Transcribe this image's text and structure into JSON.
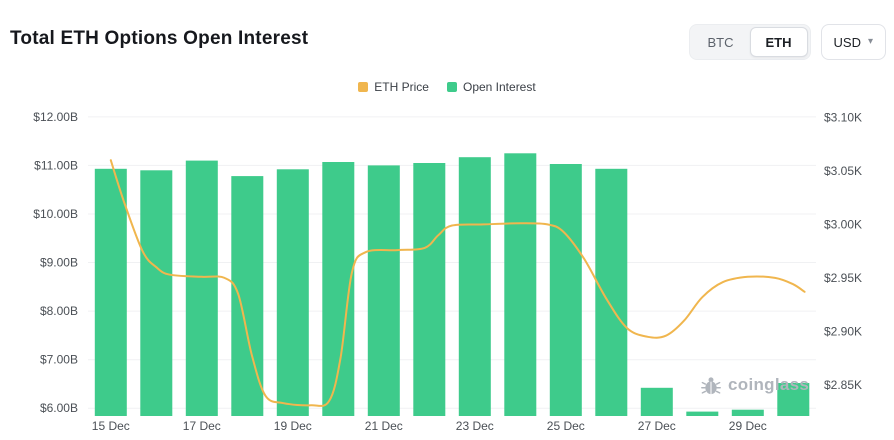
{
  "header": {
    "title": "Total ETH Options Open Interest",
    "coin_toggle": [
      "BTC",
      "ETH"
    ],
    "coin_selected": "ETH",
    "currency": "USD"
  },
  "legend": [
    {
      "label": "ETH Price",
      "color": "#f0b64e"
    },
    {
      "label": "Open Interest",
      "color": "#3ecb8b"
    }
  ],
  "watermark": "coinglass",
  "chart_data": {
    "type": "bar+line",
    "title": "Total ETH Options Open Interest",
    "grid": true,
    "legend_position": "top-center",
    "categories": [
      "15 Dec",
      "16 Dec",
      "17 Dec",
      "18 Dec",
      "19 Dec",
      "20 Dec",
      "21 Dec",
      "22 Dec",
      "23 Dec",
      "24 Dec",
      "25 Dec",
      "26 Dec",
      "27 Dec",
      "28 Dec",
      "29 Dec",
      "30 Dec"
    ],
    "x_ticks": [
      {
        "i": 0,
        "label": "15 Dec"
      },
      {
        "i": 2,
        "label": "17 Dec"
      },
      {
        "i": 4,
        "label": "19 Dec"
      },
      {
        "i": 6,
        "label": "21 Dec"
      },
      {
        "i": 8,
        "label": "23 Dec"
      },
      {
        "i": 10,
        "label": "25 Dec"
      },
      {
        "i": 12,
        "label": "27 Dec"
      },
      {
        "i": 14,
        "label": "29 Dec"
      }
    ],
    "left_axis": {
      "unit": "B USD",
      "ticks": [
        "$12.00B",
        "$11.00B",
        "$10.00B",
        "$9.00B",
        "$8.00B",
        "$7.00B",
        "$6.00B"
      ],
      "tick_values": [
        12,
        11,
        10,
        9,
        8,
        7,
        6
      ],
      "min": 5.84,
      "max": 12.1
    },
    "right_axis": {
      "unit": "K USD",
      "ticks": [
        "$3.10K",
        "$3.05K",
        "$3.00K",
        "$2.95K",
        "$2.90K",
        "$2.85K"
      ],
      "tick_values": [
        3.1,
        3.05,
        3.0,
        2.95,
        2.9,
        2.85
      ],
      "min": 2.821,
      "max": 3.105
    },
    "series": [
      {
        "name": "Open Interest",
        "type": "bar",
        "axis": "left",
        "color": "#3ecb8b",
        "values": [
          10.93,
          10.9,
          11.1,
          10.78,
          10.92,
          11.07,
          11.0,
          11.05,
          11.17,
          11.25,
          11.03,
          10.93,
          6.42,
          5.93,
          5.97,
          6.52
        ]
      },
      {
        "name": "ETH Price",
        "type": "line",
        "axis": "right",
        "color": "#f0b64e",
        "points": [
          {
            "x": 0,
            "y": 3.06
          },
          {
            "x": 0.3,
            "y": 3.02
          },
          {
            "x": 0.7,
            "y": 2.975
          },
          {
            "x": 1.0,
            "y": 2.96
          },
          {
            "x": 1.3,
            "y": 2.953
          },
          {
            "x": 2.0,
            "y": 2.951
          },
          {
            "x": 2.5,
            "y": 2.95
          },
          {
            "x": 2.8,
            "y": 2.935
          },
          {
            "x": 3.1,
            "y": 2.878
          },
          {
            "x": 3.4,
            "y": 2.84
          },
          {
            "x": 3.8,
            "y": 2.833
          },
          {
            "x": 4.4,
            "y": 2.831
          },
          {
            "x": 4.8,
            "y": 2.835
          },
          {
            "x": 5.05,
            "y": 2.875
          },
          {
            "x": 5.3,
            "y": 2.955
          },
          {
            "x": 5.6,
            "y": 2.974
          },
          {
            "x": 6.3,
            "y": 2.976
          },
          {
            "x": 6.9,
            "y": 2.978
          },
          {
            "x": 7.2,
            "y": 2.99
          },
          {
            "x": 7.5,
            "y": 2.999
          },
          {
            "x": 8.2,
            "y": 3.0
          },
          {
            "x": 9.0,
            "y": 3.001
          },
          {
            "x": 9.6,
            "y": 3.0
          },
          {
            "x": 9.95,
            "y": 2.993
          },
          {
            "x": 10.4,
            "y": 2.968
          },
          {
            "x": 10.9,
            "y": 2.93
          },
          {
            "x": 11.35,
            "y": 2.903
          },
          {
            "x": 11.8,
            "y": 2.895
          },
          {
            "x": 12.2,
            "y": 2.896
          },
          {
            "x": 12.6,
            "y": 2.91
          },
          {
            "x": 13.0,
            "y": 2.932
          },
          {
            "x": 13.45,
            "y": 2.946
          },
          {
            "x": 14.0,
            "y": 2.951
          },
          {
            "x": 14.6,
            "y": 2.95
          },
          {
            "x": 15.0,
            "y": 2.944
          },
          {
            "x": 15.25,
            "y": 2.937
          }
        ]
      }
    ]
  }
}
